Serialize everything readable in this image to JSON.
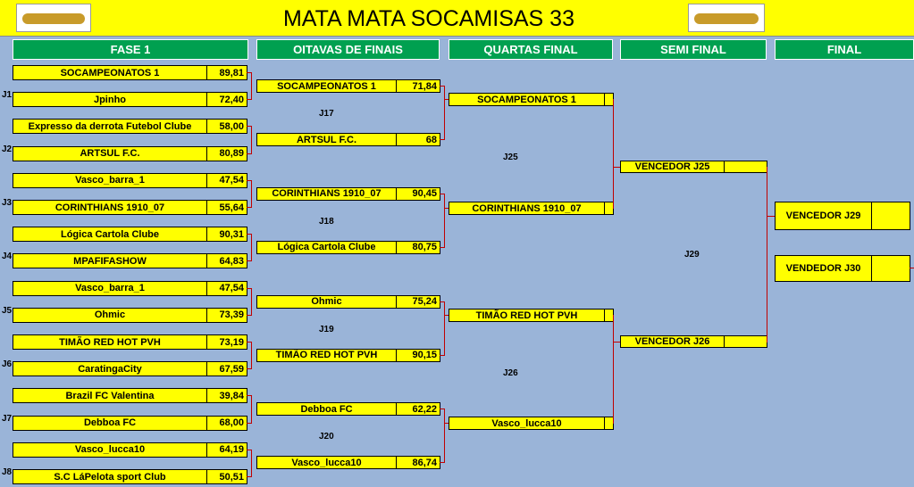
{
  "title": "MATA MATA SOCAMISAS 33",
  "headers": [
    "FASE 1",
    "OITAVAS DE FINAIS",
    "QUARTAS FINAL",
    "SEMI FINAL",
    "FINAL"
  ],
  "fase1": [
    {
      "label": "J1",
      "teams": [
        {
          "name": "SOCAMPEONATOS 1",
          "score": "89,81"
        },
        {
          "name": "Jpinho",
          "score": "72,40"
        }
      ]
    },
    {
      "label": "J2",
      "teams": [
        {
          "name": "Expresso da derrota Futebol Clube",
          "score": "58,00"
        },
        {
          "name": "ARTSUL F.C.",
          "score": "80,89"
        }
      ]
    },
    {
      "label": "J3",
      "teams": [
        {
          "name": "Vasco_barra_1",
          "score": "47,54"
        },
        {
          "name": "CORINTHIANS 1910_07",
          "score": "55,64"
        }
      ]
    },
    {
      "label": "J4",
      "teams": [
        {
          "name": "Lógica Cartola Clube",
          "score": "90,31"
        },
        {
          "name": "MPAFIFASHOW",
          "score": "64,83"
        }
      ]
    },
    {
      "label": "J5",
      "teams": [
        {
          "name": "Vasco_barra_1",
          "score": "47,54"
        },
        {
          "name": "Ohmic",
          "score": "73,39"
        }
      ]
    },
    {
      "label": "J6",
      "teams": [
        {
          "name": "TIMÃO RED HOT PVH",
          "score": "73,19"
        },
        {
          "name": "CaratingaCity",
          "score": "67,59"
        }
      ]
    },
    {
      "label": "J7",
      "teams": [
        {
          "name": "Brazil FC Valentina",
          "score": "39,84"
        },
        {
          "name": "Debboa FC",
          "score": "68,00"
        }
      ]
    },
    {
      "label": "J8",
      "teams": [
        {
          "name": "Vasco_lucca10",
          "score": "64,19"
        },
        {
          "name": "S.C LáPelota sport Club",
          "score": "50,51"
        }
      ]
    }
  ],
  "oitavas": [
    {
      "label": "J17",
      "teams": [
        {
          "name": "SOCAMPEONATOS 1",
          "score": "71,84"
        },
        {
          "name": "ARTSUL F.C.",
          "score": "68"
        }
      ]
    },
    {
      "label": "J18",
      "teams": [
        {
          "name": "CORINTHIANS 1910_07",
          "score": "90,45"
        },
        {
          "name": "Lógica Cartola Clube",
          "score": "80,75"
        }
      ]
    },
    {
      "label": "J19",
      "teams": [
        {
          "name": "Ohmic",
          "score": "75,24"
        },
        {
          "name": "TIMÃO RED HOT PVH",
          "score": "90,15"
        }
      ]
    },
    {
      "label": "J20",
      "teams": [
        {
          "name": "Debboa FC",
          "score": "62,22"
        },
        {
          "name": "Vasco_lucca10",
          "score": "86,74"
        }
      ]
    }
  ],
  "quartas": [
    {
      "label": "J25",
      "teams": [
        {
          "name": "SOCAMPEONATOS 1"
        },
        {
          "name": "CORINTHIANS 1910_07"
        }
      ]
    },
    {
      "label": "J26",
      "teams": [
        {
          "name": "TIMÃO RED HOT PVH"
        },
        {
          "name": "Vasco_lucca10"
        }
      ]
    }
  ],
  "semi": {
    "label": "J29",
    "teams": [
      {
        "name": "VENCEDOR J25"
      },
      {
        "name": "VENCEDOR J26"
      }
    ]
  },
  "final": {
    "teams": [
      {
        "name": "VENCEDOR J29"
      },
      {
        "name": "VENDEDOR J30"
      }
    ]
  }
}
